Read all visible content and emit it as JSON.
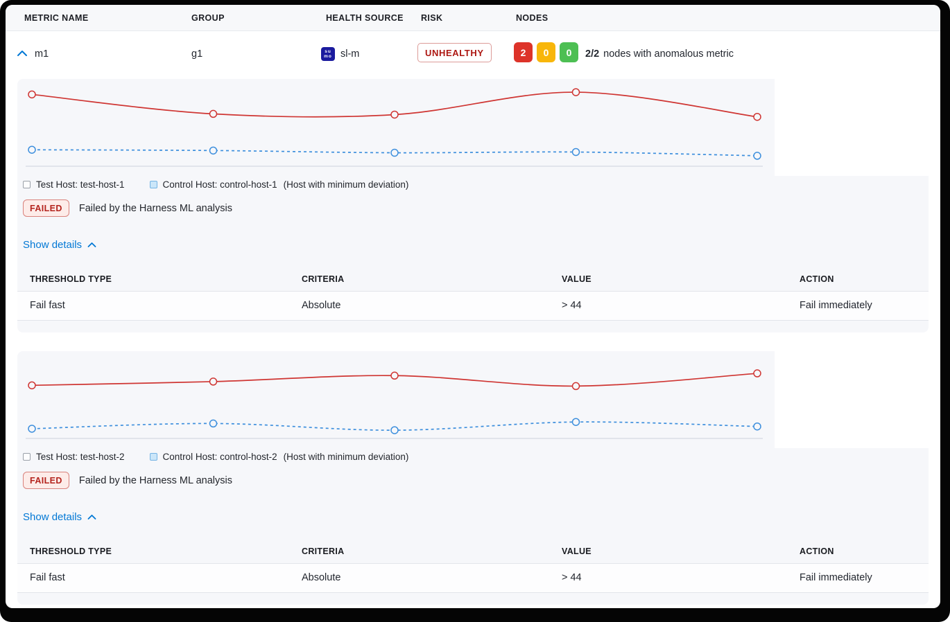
{
  "colors": {
    "accent_blue": "#0278d5",
    "risk_text_red": "#ad1712",
    "node_red": "#dd3329",
    "node_amber": "#f8b60a",
    "node_green": "#4dbf53",
    "test_line_red": "#cf3532",
    "control_line_blue": "#3d8fdd",
    "section_bg": "#f6f7fa",
    "sumo_logo_navy": "#1b1b9e"
  },
  "columns": {
    "metric_name": "METRIC NAME",
    "group": "GROUP",
    "health_source": "HEALTH SOURCE",
    "risk": "RISK",
    "nodes": "NODES"
  },
  "metric_row": {
    "name": "m1",
    "group": "g1",
    "health_source": "sl-m",
    "health_source_icon": "sumo-logic-icon",
    "icon_lines": {
      "top": "su",
      "bottom": "mo"
    },
    "risk": "UNHEALTHY",
    "nodes": {
      "unhealthy": "2",
      "warning": "0",
      "healthy": "0"
    },
    "nodes_ratio": "2/2",
    "nodes_text": "nodes with anomalous metric"
  },
  "sections": [
    {
      "legend": {
        "test_label": "Test Host: test-host-1",
        "control_label": "Control Host: control-host-1",
        "note": "(Host with minimum deviation)"
      },
      "status": "FAILED",
      "status_text": "Failed by the Harness ML analysis",
      "details_toggle": "Show details",
      "table": {
        "headers": [
          "THRESHOLD TYPE",
          "CRITERIA",
          "VALUE",
          "ACTION"
        ],
        "rows": [
          [
            "Fail fast",
            "Absolute",
            "> 44",
            "Fail immediately"
          ]
        ]
      }
    },
    {
      "legend": {
        "test_label": "Test Host: test-host-2",
        "control_label": "Control Host: control-host-2",
        "note": "(Host with minimum deviation)"
      },
      "status": "FAILED",
      "status_text": "Failed by the Harness ML analysis",
      "details_toggle": "Show details",
      "table": {
        "headers": [
          "THRESHOLD TYPE",
          "CRITERIA",
          "VALUE",
          "ACTION"
        ],
        "rows": [
          [
            "Fail fast",
            "Absolute",
            "> 44",
            "Fail immediately"
          ]
        ]
      }
    }
  ],
  "chart_data": [
    {
      "type": "line",
      "x": [
        1,
        2,
        3,
        4,
        5
      ],
      "ylim": [
        0,
        100
      ],
      "grid": false,
      "axes_labels_visible": false,
      "legend_position": "bottom",
      "series": [
        {
          "name": "Test Host: test-host-1",
          "style": "solid",
          "color": "#cf3532",
          "values": [
            96,
            70,
            69,
            99,
            66
          ]
        },
        {
          "name": "Control Host: control-host-1",
          "style": "dashed",
          "color": "#3d8fdd",
          "values": [
            22,
            21,
            18,
            19,
            14
          ]
        }
      ]
    },
    {
      "type": "line",
      "x": [
        1,
        2,
        3,
        4,
        5
      ],
      "ylim": [
        0,
        100
      ],
      "grid": false,
      "axes_labels_visible": false,
      "legend_position": "bottom",
      "series": [
        {
          "name": "Test Host: test-host-2",
          "style": "solid",
          "color": "#cf3532",
          "values": [
            71,
            76,
            84,
            70,
            87
          ]
        },
        {
          "name": "Control Host: control-host-2",
          "style": "dashed",
          "color": "#3d8fdd",
          "values": [
            13,
            20,
            11,
            22,
            16
          ]
        }
      ]
    }
  ]
}
